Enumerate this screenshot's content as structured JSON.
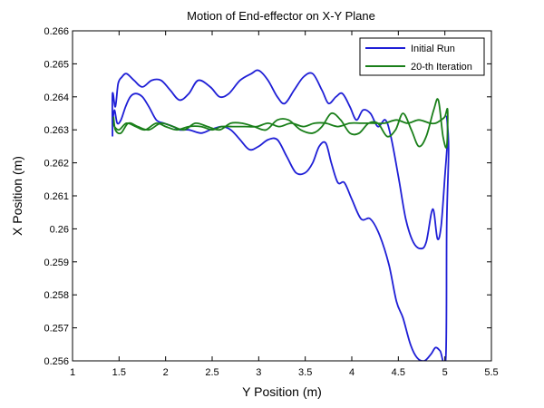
{
  "chart_data": {
    "type": "line",
    "title": "Motion of End-effector on X-Y Plane",
    "xlabel": "Y Position (m)",
    "ylabel": "X Position (m)",
    "xlim": [
      1,
      5.5
    ],
    "ylim": [
      0.256,
      0.266
    ],
    "xticks": [
      "1",
      "1.5",
      "2",
      "2.5",
      "3",
      "3.5",
      "4",
      "4.5",
      "5",
      "5.5"
    ],
    "yticks": [
      "0.256",
      "0.257",
      "0.258",
      "0.259",
      "0.26",
      "0.261",
      "0.262",
      "0.263",
      "0.264",
      "0.265",
      "0.266"
    ],
    "grid": false,
    "legend_position": "top-right",
    "series": [
      {
        "name": "Initial Run",
        "color": "#1f1fd6",
        "points": [
          [
            1.43,
            0.2628
          ],
          [
            1.43,
            0.2641
          ],
          [
            1.46,
            0.2637
          ],
          [
            1.49,
            0.2644
          ],
          [
            1.53,
            0.2646
          ],
          [
            1.58,
            0.2647
          ],
          [
            1.66,
            0.2645
          ],
          [
            1.75,
            0.2643
          ],
          [
            1.85,
            0.2645
          ],
          [
            1.95,
            0.2645
          ],
          [
            2.05,
            0.2642
          ],
          [
            2.15,
            0.2639
          ],
          [
            2.25,
            0.2641
          ],
          [
            2.35,
            0.2645
          ],
          [
            2.48,
            0.2643
          ],
          [
            2.58,
            0.264
          ],
          [
            2.68,
            0.2641
          ],
          [
            2.8,
            0.2645
          ],
          [
            2.92,
            0.2647
          ],
          [
            3.0,
            0.2648
          ],
          [
            3.1,
            0.2645
          ],
          [
            3.2,
            0.264
          ],
          [
            3.28,
            0.2638
          ],
          [
            3.38,
            0.2642
          ],
          [
            3.48,
            0.2646
          ],
          [
            3.58,
            0.2647
          ],
          [
            3.68,
            0.2642
          ],
          [
            3.75,
            0.2638
          ],
          [
            3.83,
            0.264
          ],
          [
            3.9,
            0.2641
          ],
          [
            3.98,
            0.2637
          ],
          [
            4.05,
            0.2633
          ],
          [
            4.12,
            0.2636
          ],
          [
            4.2,
            0.2635
          ],
          [
            4.28,
            0.2631
          ],
          [
            4.36,
            0.2633
          ],
          [
            4.42,
            0.2628
          ],
          [
            4.5,
            0.2616
          ],
          [
            4.58,
            0.2603
          ],
          [
            4.66,
            0.2596
          ],
          [
            4.74,
            0.2594
          ],
          [
            4.8,
            0.2596
          ],
          [
            4.87,
            0.2606
          ],
          [
            4.92,
            0.2597
          ],
          [
            4.96,
            0.2601
          ],
          [
            5.0,
            0.2616
          ],
          [
            5.03,
            0.2628
          ],
          [
            5.02,
            0.2634
          ],
          [
            5.04,
            0.2624
          ],
          [
            5.02,
            0.2601
          ],
          [
            5.01,
            0.2561
          ],
          [
            4.95,
            0.2563
          ],
          [
            4.9,
            0.2564
          ],
          [
            4.85,
            0.2562
          ],
          [
            4.78,
            0.256
          ],
          [
            4.7,
            0.2561
          ],
          [
            4.63,
            0.2565
          ],
          [
            4.55,
            0.2573
          ],
          [
            4.48,
            0.2578
          ],
          [
            4.4,
            0.2589
          ],
          [
            4.3,
            0.2598
          ],
          [
            4.2,
            0.2603
          ],
          [
            4.1,
            0.2603
          ],
          [
            4.0,
            0.2609
          ],
          [
            3.92,
            0.2614
          ],
          [
            3.85,
            0.2614
          ],
          [
            3.78,
            0.262
          ],
          [
            3.72,
            0.2626
          ],
          [
            3.65,
            0.2625
          ],
          [
            3.58,
            0.262
          ],
          [
            3.5,
            0.2617
          ],
          [
            3.4,
            0.2617
          ],
          [
            3.3,
            0.2622
          ],
          [
            3.2,
            0.2627
          ],
          [
            3.1,
            0.2627
          ],
          [
            3.0,
            0.2625
          ],
          [
            2.9,
            0.2624
          ],
          [
            2.8,
            0.2627
          ],
          [
            2.7,
            0.263
          ],
          [
            2.6,
            0.2631
          ],
          [
            2.48,
            0.263
          ],
          [
            2.38,
            0.2629
          ],
          [
            2.25,
            0.263
          ],
          [
            2.15,
            0.263
          ],
          [
            2.08,
            0.2631
          ],
          [
            1.98,
            0.2632
          ],
          [
            1.9,
            0.2633
          ],
          [
            1.82,
            0.2637
          ],
          [
            1.75,
            0.264
          ],
          [
            1.68,
            0.2641
          ],
          [
            1.62,
            0.264
          ],
          [
            1.57,
            0.2637
          ],
          [
            1.52,
            0.2633
          ],
          [
            1.48,
            0.2632
          ],
          [
            1.45,
            0.2636
          ],
          [
            1.43,
            0.2632
          ]
        ]
      },
      {
        "name": "20-th Iteration",
        "color": "#1a7f1a",
        "points": [
          [
            1.44,
            0.2632
          ],
          [
            1.45,
            0.2631
          ],
          [
            1.5,
            0.263
          ],
          [
            1.58,
            0.2632
          ],
          [
            1.68,
            0.2631
          ],
          [
            1.78,
            0.263
          ],
          [
            1.9,
            0.2632
          ],
          [
            2.0,
            0.2631
          ],
          [
            2.12,
            0.263
          ],
          [
            2.25,
            0.2631
          ],
          [
            2.38,
            0.2631
          ],
          [
            2.5,
            0.263
          ],
          [
            2.6,
            0.2631
          ],
          [
            2.72,
            0.2631
          ],
          [
            2.85,
            0.2631
          ],
          [
            2.98,
            0.2631
          ],
          [
            3.1,
            0.2632
          ],
          [
            3.22,
            0.2631
          ],
          [
            3.35,
            0.2632
          ],
          [
            3.48,
            0.2631
          ],
          [
            3.6,
            0.2632
          ],
          [
            3.72,
            0.2632
          ],
          [
            3.85,
            0.2631
          ],
          [
            3.98,
            0.2632
          ],
          [
            4.1,
            0.2632
          ],
          [
            4.22,
            0.2632
          ],
          [
            4.35,
            0.2632
          ],
          [
            4.48,
            0.2633
          ],
          [
            4.6,
            0.2632
          ],
          [
            4.72,
            0.2633
          ],
          [
            4.84,
            0.2632
          ],
          [
            4.9,
            0.2632
          ],
          [
            4.96,
            0.2633
          ],
          [
            5.0,
            0.2634
          ],
          [
            5.03,
            0.2636
          ],
          [
            5.02,
            0.2625
          ],
          [
            4.98,
            0.2628
          ],
          [
            4.93,
            0.2639
          ],
          [
            4.88,
            0.2636
          ],
          [
            4.8,
            0.2628
          ],
          [
            4.72,
            0.2625
          ],
          [
            4.64,
            0.263
          ],
          [
            4.55,
            0.2635
          ],
          [
            4.47,
            0.263
          ],
          [
            4.38,
            0.2628
          ],
          [
            4.28,
            0.2632
          ],
          [
            4.18,
            0.2632
          ],
          [
            4.08,
            0.2629
          ],
          [
            3.98,
            0.2629
          ],
          [
            3.88,
            0.2633
          ],
          [
            3.78,
            0.2635
          ],
          [
            3.68,
            0.2631
          ],
          [
            3.58,
            0.2629
          ],
          [
            3.45,
            0.263
          ],
          [
            3.32,
            0.2633
          ],
          [
            3.2,
            0.2633
          ],
          [
            3.08,
            0.263
          ],
          [
            2.95,
            0.2631
          ],
          [
            2.82,
            0.2632
          ],
          [
            2.7,
            0.2632
          ],
          [
            2.58,
            0.263
          ],
          [
            2.45,
            0.2631
          ],
          [
            2.32,
            0.2632
          ],
          [
            2.2,
            0.263
          ],
          [
            2.08,
            0.2631
          ],
          [
            1.95,
            0.2632
          ],
          [
            1.82,
            0.263
          ],
          [
            1.7,
            0.2631
          ],
          [
            1.6,
            0.2632
          ],
          [
            1.52,
            0.2629
          ],
          [
            1.46,
            0.263
          ],
          [
            1.44,
            0.2634
          ]
        ]
      }
    ]
  }
}
